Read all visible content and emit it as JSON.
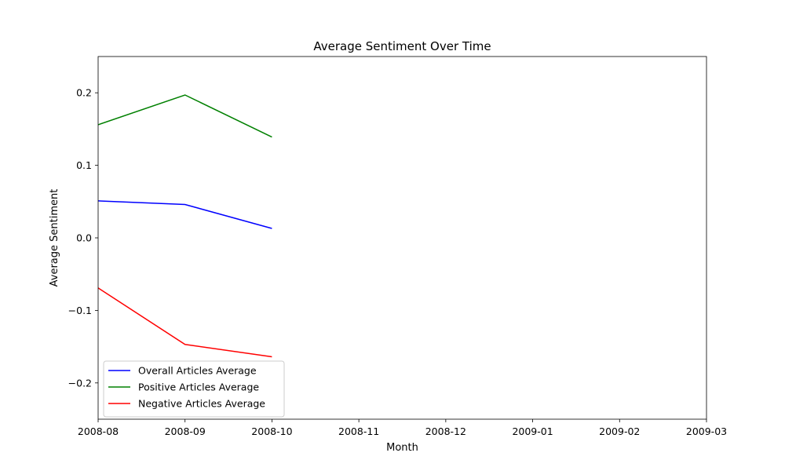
{
  "chart_data": {
    "type": "line",
    "title": "Average Sentiment Over Time",
    "xlabel": "Month",
    "ylabel": "Average Sentiment",
    "x_ticks": [
      "2008-08",
      "2008-09",
      "2008-10",
      "2008-11",
      "2008-12",
      "2009-01",
      "2009-02",
      "2009-03"
    ],
    "y_ticks": [
      {
        "value": 0.2,
        "label": "0.2"
      },
      {
        "value": 0.1,
        "label": "0.1"
      },
      {
        "value": 0.0,
        "label": "0.0"
      },
      {
        "value": -0.1,
        "label": "−0.1"
      },
      {
        "value": -0.2,
        "label": "−0.2"
      }
    ],
    "xlim": [
      "2008-08",
      "2009-03"
    ],
    "ylim": [
      -0.25,
      0.25
    ],
    "grid": false,
    "legend_position": "lower-left",
    "x": [
      "2008-08",
      "2008-09",
      "2008-10"
    ],
    "series": [
      {
        "name": "Overall Articles Average",
        "color": "#0000ff",
        "values": [
          0.051,
          0.046,
          0.013
        ]
      },
      {
        "name": "Positive Articles Average",
        "color": "#008000",
        "values": [
          0.156,
          0.197,
          0.139
        ]
      },
      {
        "name": "Negative Articles Average",
        "color": "#ff0000",
        "values": [
          -0.069,
          -0.147,
          -0.164
        ]
      }
    ]
  }
}
